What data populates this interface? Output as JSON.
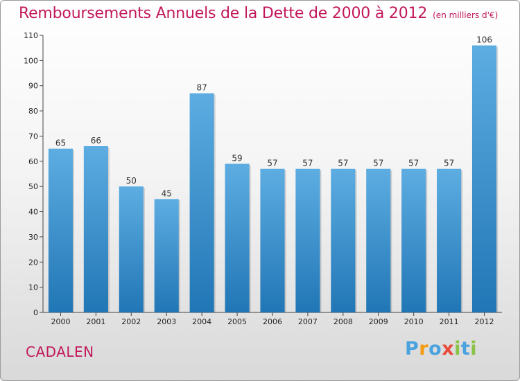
{
  "header": {
    "title": "Remboursements Annuels de la Dette de 2000 à 2012",
    "unit": "(en milliers d'€)"
  },
  "footer": {
    "commune": "CADALEN",
    "logo_letters": [
      "P",
      "r",
      "o",
      "x",
      "i",
      "t",
      "i"
    ],
    "logo_colors": [
      "#4aa3df",
      "#f39c12",
      "#4aa3df",
      "#e74c3c",
      "#8bc34a",
      "#4aa3df",
      "#8bc34a"
    ]
  },
  "colors": {
    "title": "#c2185b",
    "bar_top": "#5dade2",
    "bar_bottom": "#2176b5"
  },
  "chart_data": {
    "type": "bar",
    "title": "Remboursements Annuels de la Dette de 2000 à 2012",
    "categories": [
      "2000",
      "2001",
      "2002",
      "2003",
      "2004",
      "2005",
      "2006",
      "2007",
      "2008",
      "2009",
      "2010",
      "2011",
      "2012"
    ],
    "values": [
      65,
      66,
      50,
      45,
      87,
      59,
      57,
      57,
      57,
      57,
      57,
      57,
      106
    ],
    "xlabel": "",
    "ylabel": "",
    "ylim": [
      0,
      110
    ],
    "yticks": [
      0,
      10,
      20,
      30,
      40,
      50,
      60,
      70,
      80,
      90,
      100,
      110
    ],
    "grid": false,
    "data_labels": true
  }
}
